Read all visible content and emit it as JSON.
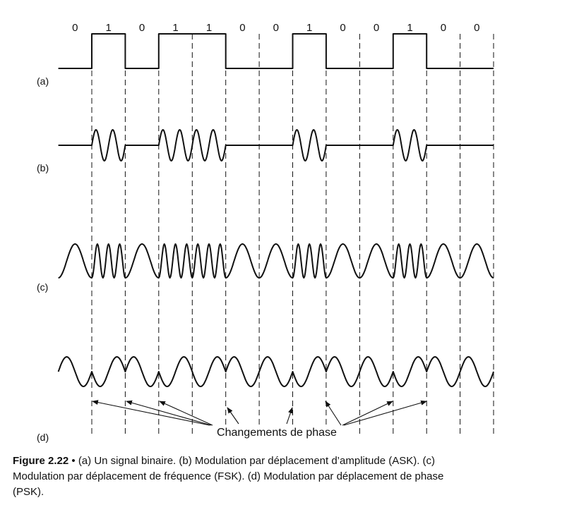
{
  "bits": [
    "0",
    "1",
    "0",
    "1",
    "1",
    "0",
    "0",
    "1",
    "0",
    "0",
    "1",
    "0",
    "0"
  ],
  "panels": {
    "a": {
      "label": "(a)"
    },
    "b": {
      "label": "(b)"
    },
    "c": {
      "label": "(c)"
    },
    "d": {
      "label": "(d)"
    }
  },
  "annotation": {
    "text": "Changements de phase"
  },
  "caption": {
    "figure": "Figure 2.22",
    "separator": "•",
    "line1": "(a) Un signal binaire. (b) Modulation par déplacement d’amplitude (ASK). (c)",
    "line2": "Modulation par déplacement de fréquence (FSK). (d) Modulation par déplacement de phase",
    "line3": "(PSK)."
  },
  "colors": {
    "ink": "#111111",
    "background": "#ffffff"
  }
}
